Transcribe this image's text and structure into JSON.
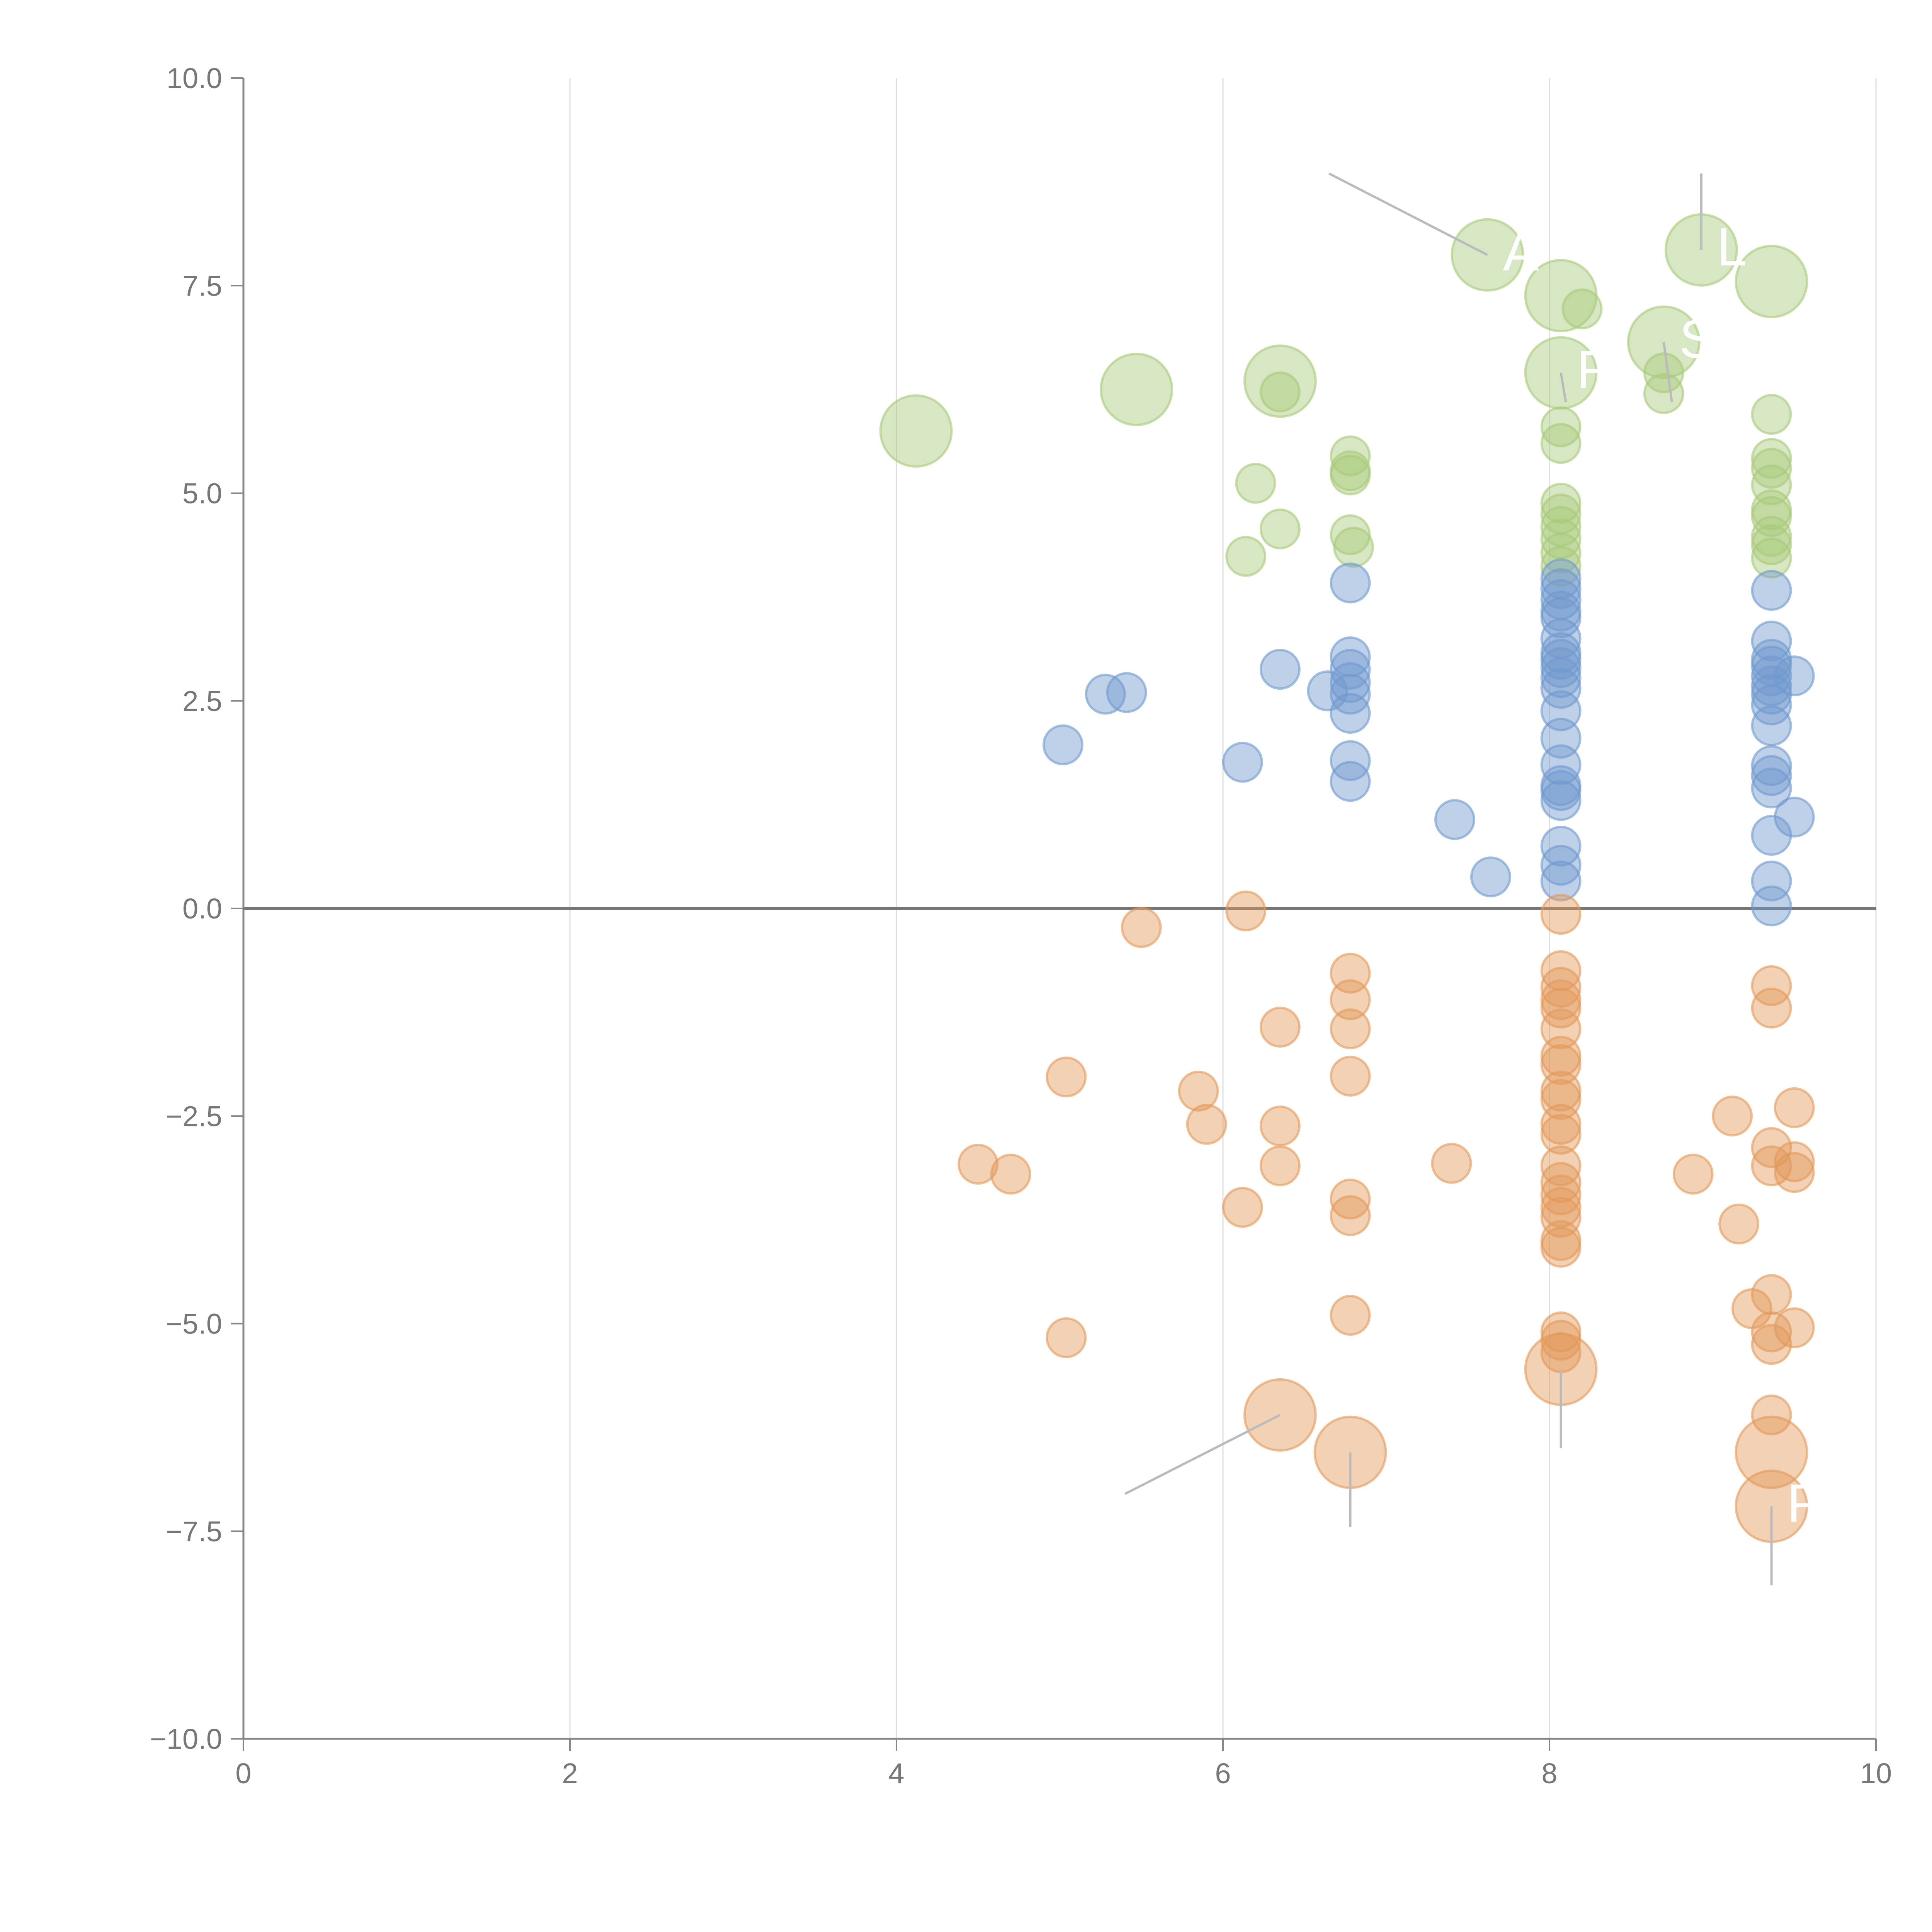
{
  "chart_data": {
    "type": "scatter",
    "title": "",
    "xlabel": "",
    "ylabel": "",
    "xlim": [
      0,
      10
    ],
    "ylim": [
      -10,
      10
    ],
    "x_ticks": [
      "0",
      "2",
      "4",
      "6",
      "8",
      "10"
    ],
    "y_ticks": [
      "10.0",
      "7.5",
      "5.0",
      "2.5",
      "0.0",
      "−2.5",
      "−5.0",
      "−7.5",
      "−10.0"
    ],
    "x_tick_values": [
      0,
      2,
      4,
      6,
      8,
      10
    ],
    "y_tick_values": [
      10,
      7.5,
      5,
      2.5,
      0,
      -2.5,
      -5,
      -7.5,
      -10
    ],
    "grid": "vertical",
    "reference_line_y": 0,
    "legend": "none",
    "series": [
      {
        "name": "green",
        "color": "#a9c97a",
        "points": [
          {
            "x": 4.12,
            "y": 5.75,
            "s": 2
          },
          {
            "x": 5.47,
            "y": 6.25,
            "s": 2
          },
          {
            "x": 6.35,
            "y": 6.35,
            "s": 2
          },
          {
            "x": 6.35,
            "y": 6.22,
            "s": 1
          },
          {
            "x": 6.2,
            "y": 5.12,
            "s": 1
          },
          {
            "x": 6.35,
            "y": 4.57,
            "s": 1
          },
          {
            "x": 6.14,
            "y": 4.24,
            "s": 1
          },
          {
            "x": 6.78,
            "y": 5.45,
            "s": 1
          },
          {
            "x": 6.78,
            "y": 5.27,
            "s": 1
          },
          {
            "x": 6.78,
            "y": 5.22,
            "s": 1
          },
          {
            "x": 6.78,
            "y": 4.5,
            "s": 1
          },
          {
            "x": 6.8,
            "y": 4.35,
            "s": 1
          },
          {
            "x": 7.62,
            "y": 7.87,
            "s": 2
          },
          {
            "x": 8.07,
            "y": 7.38,
            "s": 2
          },
          {
            "x": 8.2,
            "y": 7.22,
            "s": 1
          },
          {
            "x": 8.07,
            "y": 6.45,
            "s": 2
          },
          {
            "x": 8.07,
            "y": 5.8,
            "s": 1
          },
          {
            "x": 8.07,
            "y": 5.6,
            "s": 1
          },
          {
            "x": 8.07,
            "y": 4.88,
            "s": 1
          },
          {
            "x": 8.07,
            "y": 4.75,
            "s": 1
          },
          {
            "x": 8.07,
            "y": 4.6,
            "s": 1
          },
          {
            "x": 8.07,
            "y": 4.45,
            "s": 1
          },
          {
            "x": 8.07,
            "y": 4.28,
            "s": 1
          },
          {
            "x": 8.07,
            "y": 4.12,
            "s": 1
          },
          {
            "x": 8.7,
            "y": 6.82,
            "s": 2
          },
          {
            "x": 8.7,
            "y": 6.45,
            "s": 1
          },
          {
            "x": 8.7,
            "y": 6.2,
            "s": 1
          },
          {
            "x": 8.93,
            "y": 7.93,
            "s": 2
          },
          {
            "x": 9.36,
            "y": 7.55,
            "s": 2
          },
          {
            "x": 9.36,
            "y": 5.95,
            "s": 1
          },
          {
            "x": 9.36,
            "y": 5.42,
            "s": 1
          },
          {
            "x": 9.36,
            "y": 5.3,
            "s": 1
          },
          {
            "x": 9.36,
            "y": 5.1,
            "s": 1
          },
          {
            "x": 9.36,
            "y": 4.8,
            "s": 1
          },
          {
            "x": 9.36,
            "y": 4.72,
            "s": 1
          },
          {
            "x": 9.36,
            "y": 4.48,
            "s": 1
          },
          {
            "x": 9.36,
            "y": 4.38,
            "s": 1
          },
          {
            "x": 9.36,
            "y": 4.22,
            "s": 1
          }
        ]
      },
      {
        "name": "blue",
        "color": "#7099cf",
        "points": [
          {
            "x": 5.02,
            "y": 1.97,
            "s": 1
          },
          {
            "x": 5.28,
            "y": 2.58,
            "s": 1
          },
          {
            "x": 5.41,
            "y": 2.6,
            "s": 1
          },
          {
            "x": 6.12,
            "y": 1.76,
            "s": 1
          },
          {
            "x": 6.35,
            "y": 2.88,
            "s": 1
          },
          {
            "x": 6.64,
            "y": 2.62,
            "s": 1
          },
          {
            "x": 6.78,
            "y": 3.92,
            "s": 1
          },
          {
            "x": 6.78,
            "y": 3.03,
            "s": 1
          },
          {
            "x": 6.78,
            "y": 2.88,
            "s": 1
          },
          {
            "x": 6.78,
            "y": 2.72,
            "s": 1
          },
          {
            "x": 6.78,
            "y": 2.58,
            "s": 1
          },
          {
            "x": 6.78,
            "y": 2.35,
            "s": 1
          },
          {
            "x": 6.78,
            "y": 1.78,
            "s": 1
          },
          {
            "x": 6.78,
            "y": 1.53,
            "s": 1
          },
          {
            "x": 7.42,
            "y": 1.07,
            "s": 1
          },
          {
            "x": 7.64,
            "y": 0.38,
            "s": 1
          },
          {
            "x": 8.07,
            "y": 3.97,
            "s": 1
          },
          {
            "x": 8.07,
            "y": 3.85,
            "s": 1
          },
          {
            "x": 8.07,
            "y": 3.72,
            "s": 1
          },
          {
            "x": 8.07,
            "y": 3.58,
            "s": 1
          },
          {
            "x": 8.07,
            "y": 3.5,
            "s": 1
          },
          {
            "x": 8.07,
            "y": 3.25,
            "s": 1
          },
          {
            "x": 8.07,
            "y": 3.08,
            "s": 1
          },
          {
            "x": 8.07,
            "y": 3.0,
            "s": 1
          },
          {
            "x": 8.07,
            "y": 2.9,
            "s": 1
          },
          {
            "x": 8.07,
            "y": 2.78,
            "s": 1
          },
          {
            "x": 8.07,
            "y": 2.65,
            "s": 1
          },
          {
            "x": 8.07,
            "y": 2.38,
            "s": 1
          },
          {
            "x": 8.07,
            "y": 2.05,
            "s": 1
          },
          {
            "x": 8.07,
            "y": 1.73,
            "s": 1
          },
          {
            "x": 8.07,
            "y": 1.48,
            "s": 1
          },
          {
            "x": 8.07,
            "y": 1.42,
            "s": 1
          },
          {
            "x": 8.07,
            "y": 1.3,
            "s": 1
          },
          {
            "x": 8.07,
            "y": 0.75,
            "s": 1
          },
          {
            "x": 8.07,
            "y": 0.52,
            "s": 1
          },
          {
            "x": 8.07,
            "y": 0.33,
            "s": 1
          },
          {
            "x": 9.36,
            "y": 3.83,
            "s": 1
          },
          {
            "x": 9.36,
            "y": 3.22,
            "s": 1
          },
          {
            "x": 9.36,
            "y": 3.0,
            "s": 1
          },
          {
            "x": 9.36,
            "y": 2.92,
            "s": 1
          },
          {
            "x": 9.36,
            "y": 2.8,
            "s": 1
          },
          {
            "x": 9.36,
            "y": 2.68,
            "s": 1
          },
          {
            "x": 9.36,
            "y": 2.58,
            "s": 1
          },
          {
            "x": 9.36,
            "y": 2.45,
            "s": 1
          },
          {
            "x": 9.36,
            "y": 2.2,
            "s": 1
          },
          {
            "x": 9.36,
            "y": 1.72,
            "s": 1
          },
          {
            "x": 9.36,
            "y": 1.6,
            "s": 1
          },
          {
            "x": 9.36,
            "y": 1.45,
            "s": 1
          },
          {
            "x": 9.36,
            "y": 0.88,
            "s": 1
          },
          {
            "x": 9.36,
            "y": 0.33,
            "s": 1
          },
          {
            "x": 9.36,
            "y": 0.03,
            "s": 1
          },
          {
            "x": 9.5,
            "y": 2.8,
            "s": 1
          },
          {
            "x": 9.5,
            "y": 1.1,
            "s": 1
          }
        ]
      },
      {
        "name": "orange",
        "color": "#e39a5a",
        "points": [
          {
            "x": 4.5,
            "y": -3.08,
            "s": 1
          },
          {
            "x": 4.7,
            "y": -3.2,
            "s": 1
          },
          {
            "x": 5.04,
            "y": -2.03,
            "s": 1
          },
          {
            "x": 5.04,
            "y": -5.17,
            "s": 1
          },
          {
            "x": 5.5,
            "y": -0.23,
            "s": 1
          },
          {
            "x": 5.85,
            "y": -2.2,
            "s": 1
          },
          {
            "x": 5.9,
            "y": -2.6,
            "s": 1
          },
          {
            "x": 6.12,
            "y": -3.6,
            "s": 1
          },
          {
            "x": 6.14,
            "y": -0.03,
            "s": 1
          },
          {
            "x": 6.35,
            "y": -1.43,
            "s": 1
          },
          {
            "x": 6.35,
            "y": -2.62,
            "s": 1
          },
          {
            "x": 6.35,
            "y": -3.1,
            "s": 1
          },
          {
            "x": 6.35,
            "y": -6.1,
            "s": 2
          },
          {
            "x": 6.78,
            "y": -0.78,
            "s": 1
          },
          {
            "x": 6.78,
            "y": -1.1,
            "s": 1
          },
          {
            "x": 6.78,
            "y": -1.45,
            "s": 1
          },
          {
            "x": 6.78,
            "y": -2.02,
            "s": 1
          },
          {
            "x": 6.78,
            "y": -3.5,
            "s": 1
          },
          {
            "x": 6.78,
            "y": -3.7,
            "s": 1
          },
          {
            "x": 6.78,
            "y": -4.9,
            "s": 1
          },
          {
            "x": 6.78,
            "y": -6.55,
            "s": 2
          },
          {
            "x": 7.4,
            "y": -3.07,
            "s": 1
          },
          {
            "x": 8.07,
            "y": -0.07,
            "s": 1
          },
          {
            "x": 8.07,
            "y": -0.75,
            "s": 1
          },
          {
            "x": 8.07,
            "y": -0.95,
            "s": 1
          },
          {
            "x": 8.07,
            "y": -1.1,
            "s": 1
          },
          {
            "x": 8.07,
            "y": -1.2,
            "s": 1
          },
          {
            "x": 8.07,
            "y": -1.45,
            "s": 1
          },
          {
            "x": 8.07,
            "y": -1.78,
            "s": 1
          },
          {
            "x": 8.07,
            "y": -1.88,
            "s": 1
          },
          {
            "x": 8.07,
            "y": -2.2,
            "s": 1
          },
          {
            "x": 8.07,
            "y": -2.3,
            "s": 1
          },
          {
            "x": 8.07,
            "y": -2.6,
            "s": 1
          },
          {
            "x": 8.07,
            "y": -2.72,
            "s": 1
          },
          {
            "x": 8.07,
            "y": -3.1,
            "s": 1
          },
          {
            "x": 8.07,
            "y": -3.3,
            "s": 1
          },
          {
            "x": 8.07,
            "y": -3.45,
            "s": 1
          },
          {
            "x": 8.07,
            "y": -3.6,
            "s": 1
          },
          {
            "x": 8.07,
            "y": -3.72,
            "s": 1
          },
          {
            "x": 8.07,
            "y": -4.0,
            "s": 1
          },
          {
            "x": 8.07,
            "y": -4.08,
            "s": 1
          },
          {
            "x": 8.07,
            "y": -5.1,
            "s": 1
          },
          {
            "x": 8.07,
            "y": -5.2,
            "s": 1
          },
          {
            "x": 8.07,
            "y": -5.35,
            "s": 1
          },
          {
            "x": 8.07,
            "y": -5.55,
            "s": 2
          },
          {
            "x": 8.88,
            "y": -3.2,
            "s": 1
          },
          {
            "x": 9.12,
            "y": -2.5,
            "s": 1
          },
          {
            "x": 9.16,
            "y": -3.8,
            "s": 1
          },
          {
            "x": 9.24,
            "y": -4.82,
            "s": 1
          },
          {
            "x": 9.36,
            "y": -0.93,
            "s": 1
          },
          {
            "x": 9.36,
            "y": -1.2,
            "s": 1
          },
          {
            "x": 9.36,
            "y": -2.88,
            "s": 1
          },
          {
            "x": 9.36,
            "y": -3.1,
            "s": 1
          },
          {
            "x": 9.36,
            "y": -4.65,
            "s": 1
          },
          {
            "x": 9.36,
            "y": -5.1,
            "s": 1
          },
          {
            "x": 9.36,
            "y": -5.25,
            "s": 1
          },
          {
            "x": 9.36,
            "y": -6.1,
            "s": 1
          },
          {
            "x": 9.36,
            "y": -6.55,
            "s": 2
          },
          {
            "x": 9.36,
            "y": -7.2,
            "s": 2
          },
          {
            "x": 9.5,
            "y": -2.4,
            "s": 1
          },
          {
            "x": 9.5,
            "y": -3.05,
            "s": 1
          },
          {
            "x": 9.5,
            "y": -3.18,
            "s": 1
          },
          {
            "x": 9.5,
            "y": -5.05,
            "s": 1
          }
        ]
      }
    ],
    "annotations": [
      {
        "text": "A",
        "x": 7.62,
        "y": 7.87,
        "label_x": 6.65,
        "label_y": 8.85
      },
      {
        "text": "L",
        "x": 8.93,
        "y": 7.93,
        "label_x": 8.93,
        "label_y": 8.85
      },
      {
        "text": "F",
        "x": 8.07,
        "y": 6.45,
        "label_x": 8.1,
        "label_y": 6.1
      },
      {
        "text": "S",
        "x": 8.7,
        "y": 6.82,
        "label_x": 8.75,
        "label_y": 6.1
      },
      {
        "text": "P",
        "x": 9.36,
        "y": -7.2,
        "label_x": 9.36,
        "label_y": -8.15
      },
      {
        "text": "",
        "x": 6.35,
        "y": -6.1,
        "label_x": 5.4,
        "label_y": -7.05
      },
      {
        "text": "",
        "x": 6.78,
        "y": -6.55,
        "label_x": 6.78,
        "label_y": -7.45
      },
      {
        "text": "",
        "x": 8.07,
        "y": -5.55,
        "label_x": 8.07,
        "label_y": -6.5
      }
    ]
  }
}
